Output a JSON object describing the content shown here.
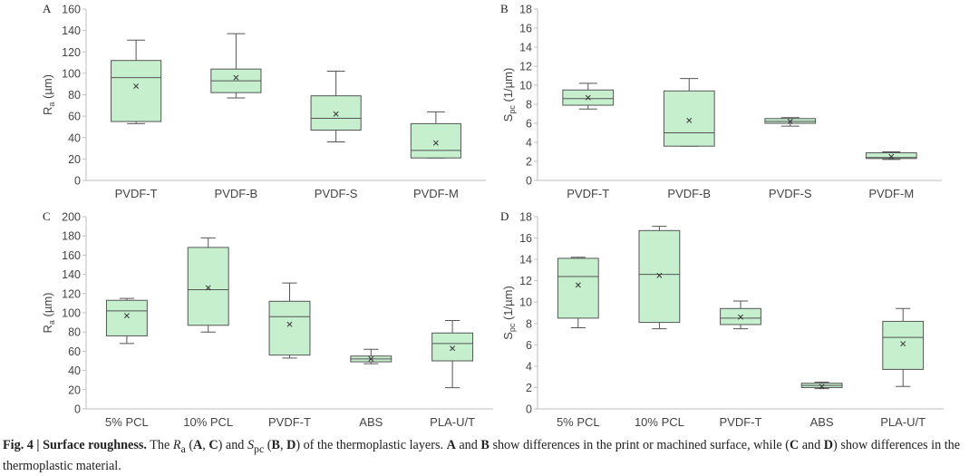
{
  "figure": {
    "title": "Fig. 4 | Surface roughness."
  },
  "caption": {
    "fig_label": "Fig. 4 | Surface roughness.",
    "text_1": " The ",
    "ra_symbol": "R",
    "ra_sub": "a",
    "text_2": " (",
    "ref_a": "A",
    "text_3": ", ",
    "ref_c": "C",
    "text_4": ") and ",
    "spc_symbol": "S",
    "spc_sub": "pc",
    "text_5": " (",
    "ref_b": "B",
    "text_6": ", ",
    "ref_d": "D",
    "text_7": ") of the thermoplastic layers. ",
    "ref_a2": "A",
    "text_8": " and ",
    "ref_b2": "B",
    "text_9": " show differences in the print or machined surface, while (",
    "ref_c2": "C",
    "text_10": " and ",
    "ref_d2": "D",
    "text_11": ") show differences in the thermoplastic material."
  },
  "colors": {
    "box_fill": "#c6efce",
    "box_stroke": "#555555",
    "axis": "#bfbfbf"
  },
  "chart_data": [
    {
      "panel": "A",
      "type": "box",
      "ylabel": "R",
      "ylabel_sub": "a",
      "ylabel_unit": " (µm)",
      "ylim": [
        0,
        160
      ],
      "ytick_step": 20,
      "yticks": [
        "0",
        "20",
        "40",
        "60",
        "80",
        "100",
        "120",
        "140",
        "160"
      ],
      "categories": [
        "PVDF-T",
        "PVDF-B",
        "PVDF-S",
        "PVDF-M"
      ],
      "boxes": [
        {
          "min": 53,
          "q1": 55,
          "median": 96,
          "q3": 112,
          "max": 131,
          "mean": 88
        },
        {
          "min": 77,
          "q1": 82,
          "median": 93,
          "q3": 104,
          "max": 137,
          "mean": 96
        },
        {
          "min": 36,
          "q1": 47,
          "median": 58,
          "q3": 79,
          "max": 102,
          "mean": 62
        },
        {
          "min": 21,
          "q1": 21,
          "median": 28,
          "q3": 53,
          "max": 64,
          "mean": 35
        }
      ]
    },
    {
      "panel": "B",
      "type": "box",
      "ylabel": "S",
      "ylabel_sub": "pc",
      "ylabel_unit": " (1/µm)",
      "ylim": [
        0,
        18
      ],
      "ytick_step": 2,
      "yticks": [
        "0",
        "2",
        "4",
        "6",
        "8",
        "10",
        "12",
        "14",
        "16",
        "18"
      ],
      "categories": [
        "PVDF-T",
        "PVDF-B",
        "PVDF-S",
        "PVDF-M"
      ],
      "boxes": [
        {
          "min": 7.5,
          "q1": 7.9,
          "median": 8.6,
          "q3": 9.5,
          "max": 10.2,
          "mean": 8.7
        },
        {
          "min": 3.6,
          "q1": 3.6,
          "median": 5.0,
          "q3": 9.4,
          "max": 10.7,
          "mean": 6.3
        },
        {
          "min": 5.7,
          "q1": 6.0,
          "median": 6.2,
          "q3": 6.5,
          "max": 6.6,
          "mean": 6.2
        },
        {
          "min": 2.2,
          "q1": 2.3,
          "median": 2.4,
          "q3": 2.9,
          "max": 3.0,
          "mean": 2.5
        }
      ]
    },
    {
      "panel": "C",
      "type": "box",
      "ylabel": "R",
      "ylabel_sub": "a",
      "ylabel_unit": " (µm)",
      "ylim": [
        0,
        200
      ],
      "ytick_step": 20,
      "yticks": [
        "0",
        "20",
        "40",
        "60",
        "80",
        "100",
        "120",
        "140",
        "160",
        "180",
        "200"
      ],
      "categories": [
        "5% PCL",
        "10% PCL",
        "PVDF-T",
        "ABS",
        "PLA-U/T"
      ],
      "boxes": [
        {
          "min": 68,
          "q1": 76,
          "median": 102,
          "q3": 113,
          "max": 115,
          "mean": 97
        },
        {
          "min": 80,
          "q1": 87,
          "median": 124,
          "q3": 168,
          "max": 178,
          "mean": 126
        },
        {
          "min": 53,
          "q1": 56,
          "median": 96,
          "q3": 112,
          "max": 131,
          "mean": 88
        },
        {
          "min": 47,
          "q1": 49,
          "median": 52,
          "q3": 55,
          "max": 62,
          "mean": 52
        },
        {
          "min": 22,
          "q1": 50,
          "median": 68,
          "q3": 79,
          "max": 92,
          "mean": 63
        }
      ]
    },
    {
      "panel": "D",
      "type": "box",
      "ylabel": "S",
      "ylabel_sub": "pc",
      "ylabel_unit": " (1/µm)",
      "ylim": [
        0,
        18
      ],
      "ytick_step": 2,
      "yticks": [
        "0",
        "2",
        "4",
        "6",
        "8",
        "10",
        "12",
        "14",
        "16",
        "18"
      ],
      "categories": [
        "5% PCL",
        "10% PCL",
        "PVDF-T",
        "ABS",
        "PLA-U/T"
      ],
      "boxes": [
        {
          "min": 7.6,
          "q1": 8.5,
          "median": 12.4,
          "q3": 14.1,
          "max": 14.2,
          "mean": 11.6
        },
        {
          "min": 7.5,
          "q1": 8.1,
          "median": 12.6,
          "q3": 16.7,
          "max": 17.1,
          "mean": 12.5
        },
        {
          "min": 7.5,
          "q1": 7.9,
          "median": 8.5,
          "q3": 9.4,
          "max": 10.1,
          "mean": 8.6
        },
        {
          "min": 1.9,
          "q1": 2.0,
          "median": 2.2,
          "q3": 2.4,
          "max": 2.5,
          "mean": 2.1
        },
        {
          "min": 2.1,
          "q1": 3.7,
          "median": 6.7,
          "q3": 8.2,
          "max": 9.4,
          "mean": 6.1
        }
      ]
    }
  ]
}
